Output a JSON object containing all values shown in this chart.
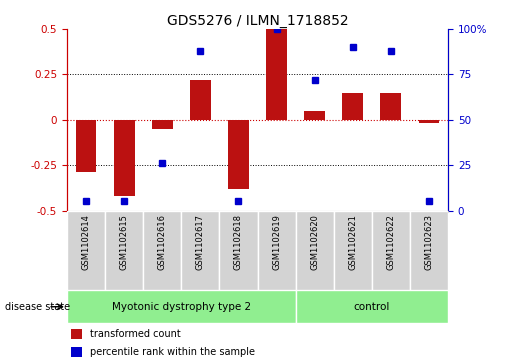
{
  "title": "GDS5276 / ILMN_1718852",
  "samples": [
    "GSM1102614",
    "GSM1102615",
    "GSM1102616",
    "GSM1102617",
    "GSM1102618",
    "GSM1102619",
    "GSM1102620",
    "GSM1102621",
    "GSM1102622",
    "GSM1102623"
  ],
  "red_bars": [
    -0.29,
    -0.42,
    -0.05,
    0.22,
    -0.38,
    0.5,
    0.05,
    0.15,
    0.15,
    -0.02
  ],
  "blue_dots": [
    5,
    5,
    26,
    88,
    5,
    100,
    72,
    90,
    88,
    5
  ],
  "ylim_left": [
    -0.5,
    0.5
  ],
  "ylim_right": [
    0,
    100
  ],
  "yticks_left": [
    -0.5,
    -0.25,
    0,
    0.25,
    0.5
  ],
  "yticks_right": [
    0,
    25,
    50,
    75,
    100
  ],
  "ytick_labels_right": [
    "0",
    "25",
    "50",
    "75",
    "100%"
  ],
  "ytick_labels_left": [
    "-0.5",
    "-0.25",
    "0",
    "0.25",
    "0.5"
  ],
  "bar_color": "#bb1111",
  "dot_color": "#0000cc",
  "zero_line_color": "#cc0000",
  "grid_color": "#000000",
  "disease_groups": [
    {
      "label": "Myotonic dystrophy type 2",
      "start": 0,
      "end": 6,
      "color": "#90ee90"
    },
    {
      "label": "control",
      "start": 6,
      "end": 10,
      "color": "#90ee90"
    }
  ],
  "disease_label": "disease state",
  "legend_red": "transformed count",
  "legend_blue": "percentile rank within the sample",
  "title_fontsize": 10,
  "tick_fontsize": 7.5,
  "axis_left_color": "#cc0000",
  "axis_right_color": "#0000cc",
  "sample_box_color": "#d3d3d3",
  "group_border_color": "#ffffff"
}
